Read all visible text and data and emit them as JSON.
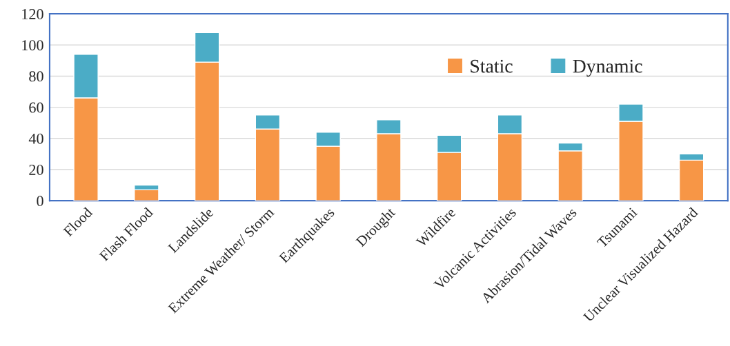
{
  "chart_data": {
    "type": "bar",
    "stacked": true,
    "categories": [
      "Flood",
      "Flash Flood",
      "Landslide",
      "Extreme Weather/ Storm",
      "Earthquakes",
      "Drought",
      "Wildfire",
      "Volcanic Activities",
      "Abrasion/Tidal Waves",
      "Tsunami",
      "Unclear Visualized Hazard"
    ],
    "series": [
      {
        "name": "Static",
        "color": "#f79646",
        "values": [
          66,
          7,
          89,
          46,
          35,
          43,
          31,
          43,
          32,
          51,
          26
        ]
      },
      {
        "name": "Dynamic",
        "color": "#4bacc6",
        "values": [
          28,
          3,
          19,
          9,
          9,
          9,
          11,
          12,
          5,
          11,
          4
        ]
      }
    ],
    "ylim": [
      0,
      120
    ],
    "yticks": [
      0,
      20,
      40,
      60,
      80,
      100,
      120
    ],
    "grid": "y",
    "legend": "top right"
  }
}
